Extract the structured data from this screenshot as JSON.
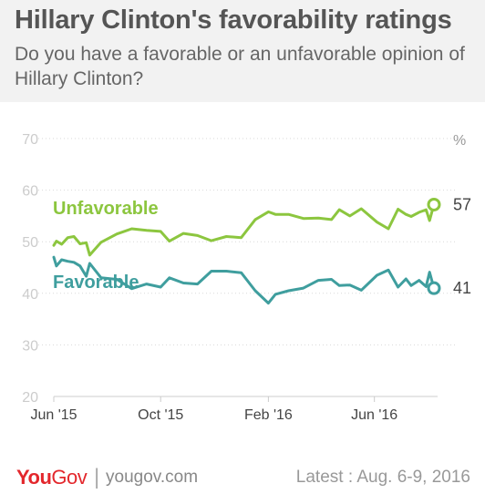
{
  "header": {
    "title": "Hillary Clinton's favorability ratings",
    "subtitle": "Do you have a favorable or an unfavorable opinion of Hillary Clinton?"
  },
  "footer": {
    "logo_you": "You",
    "logo_gov": "Gov",
    "separator": "|",
    "site": "yougov.com",
    "latest": "Latest : Aug. 6-9, 2016"
  },
  "colors": {
    "unfavorable": "#8cc63f",
    "favorable": "#3f9e9e",
    "axis_text": "#cccccc",
    "x_text": "#444444"
  },
  "chart_data": {
    "type": "line",
    "unit": "%",
    "ylim": [
      20,
      70
    ],
    "y_ticks": [
      "20",
      "30",
      "40",
      "50",
      "60",
      "70"
    ],
    "x_range": [
      "2015-06-01",
      "2016-08-08"
    ],
    "x_ticks": [
      {
        "label": "Jun '15",
        "date": "2015-06-01"
      },
      {
        "label": "Oct '15",
        "date": "2015-10-01"
      },
      {
        "label": "Feb '16",
        "date": "2016-02-01"
      },
      {
        "label": "Jun '16",
        "date": "2016-06-01"
      }
    ],
    "grid": "horizontal-dotted",
    "series": [
      {
        "name": "Unfavorable",
        "color": "#8cc63f",
        "end_label": "57",
        "points": [
          [
            "2015-06-01",
            49.3
          ],
          [
            "2015-06-04",
            50.1
          ],
          [
            "2015-06-10",
            49.5
          ],
          [
            "2015-06-17",
            50.8
          ],
          [
            "2015-06-24",
            51.0
          ],
          [
            "2015-07-01",
            49.6
          ],
          [
            "2015-07-08",
            49.8
          ],
          [
            "2015-07-12",
            47.4
          ],
          [
            "2015-07-25",
            49.9
          ],
          [
            "2015-08-12",
            51.5
          ],
          [
            "2015-08-29",
            52.5
          ],
          [
            "2015-09-15",
            52.2
          ],
          [
            "2015-10-01",
            52.0
          ],
          [
            "2015-10-11",
            50.1
          ],
          [
            "2015-10-27",
            51.6
          ],
          [
            "2015-11-12",
            51.2
          ],
          [
            "2015-11-28",
            50.2
          ],
          [
            "2015-12-15",
            51.0
          ],
          [
            "2016-01-01",
            50.8
          ],
          [
            "2016-01-17",
            54.3
          ],
          [
            "2016-02-01",
            55.8
          ],
          [
            "2016-02-09",
            55.3
          ],
          [
            "2016-02-24",
            55.3
          ],
          [
            "2016-03-12",
            54.5
          ],
          [
            "2016-03-29",
            54.6
          ],
          [
            "2016-04-13",
            54.3
          ],
          [
            "2016-04-22",
            56.2
          ],
          [
            "2016-05-04",
            55.0
          ],
          [
            "2016-05-17",
            56.4
          ],
          [
            "2016-06-04",
            53.8
          ],
          [
            "2016-06-17",
            52.5
          ],
          [
            "2016-06-28",
            56.3
          ],
          [
            "2016-07-07",
            55.3
          ],
          [
            "2016-07-13",
            54.9
          ],
          [
            "2016-07-22",
            55.7
          ],
          [
            "2016-07-30",
            56.2
          ],
          [
            "2016-08-03",
            54.1
          ],
          [
            "2016-08-08",
            57.2
          ]
        ]
      },
      {
        "name": "Favorable",
        "color": "#3f9e9e",
        "end_label": "41",
        "points": [
          [
            "2015-06-01",
            47.0
          ],
          [
            "2015-06-04",
            45.3
          ],
          [
            "2015-06-10",
            46.5
          ],
          [
            "2015-06-17",
            46.2
          ],
          [
            "2015-06-24",
            46.0
          ],
          [
            "2015-07-01",
            45.3
          ],
          [
            "2015-07-08",
            43.3
          ],
          [
            "2015-07-12",
            45.8
          ],
          [
            "2015-07-25",
            43.0
          ],
          [
            "2015-08-12",
            42.7
          ],
          [
            "2015-08-29",
            40.9
          ],
          [
            "2015-09-15",
            41.8
          ],
          [
            "2015-10-01",
            41.2
          ],
          [
            "2015-10-11",
            43.0
          ],
          [
            "2015-10-27",
            42.0
          ],
          [
            "2015-11-12",
            41.8
          ],
          [
            "2015-11-28",
            44.3
          ],
          [
            "2015-12-15",
            44.3
          ],
          [
            "2016-01-01",
            44.0
          ],
          [
            "2016-01-17",
            40.5
          ],
          [
            "2016-02-01",
            38.1
          ],
          [
            "2016-02-09",
            39.8
          ],
          [
            "2016-02-24",
            40.5
          ],
          [
            "2016-03-12",
            41.0
          ],
          [
            "2016-03-29",
            42.5
          ],
          [
            "2016-04-13",
            42.7
          ],
          [
            "2016-04-22",
            41.5
          ],
          [
            "2016-05-04",
            41.6
          ],
          [
            "2016-05-17",
            40.6
          ],
          [
            "2016-06-04",
            43.5
          ],
          [
            "2016-06-17",
            44.5
          ],
          [
            "2016-06-28",
            41.2
          ],
          [
            "2016-07-07",
            42.8
          ],
          [
            "2016-07-13",
            41.5
          ],
          [
            "2016-07-22",
            42.5
          ],
          [
            "2016-07-30",
            41.3
          ],
          [
            "2016-08-03",
            44.1
          ],
          [
            "2016-08-08",
            41.0
          ]
        ]
      }
    ]
  }
}
